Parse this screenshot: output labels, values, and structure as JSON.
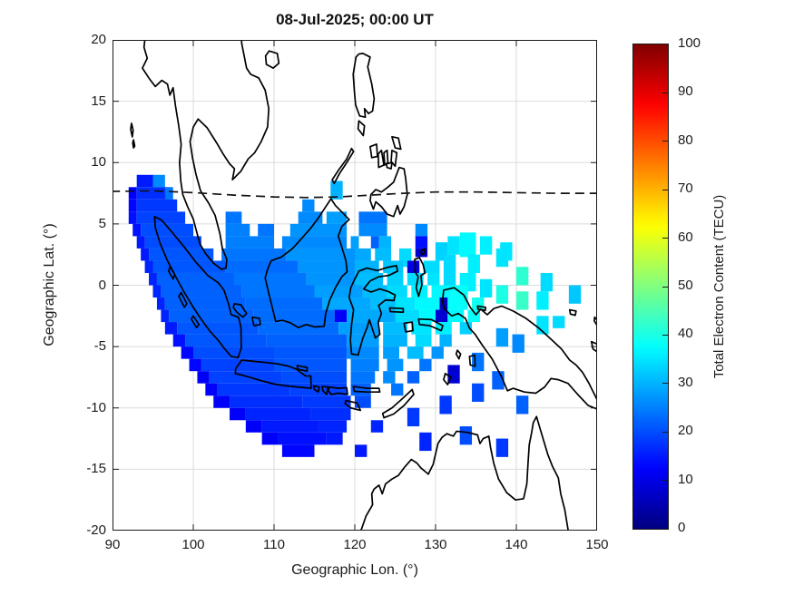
{
  "title": "08-Jul-2025; 00:00 UT",
  "axes": {
    "xlabel": "Geographic Lon. (°)",
    "ylabel": "Geographic Lat. (°)",
    "x_ticks": [
      90,
      100,
      110,
      120,
      130,
      140,
      150
    ],
    "y_ticks": [
      20,
      15,
      10,
      5,
      0,
      -5,
      -10,
      -15,
      -20
    ],
    "x_range": [
      90,
      150
    ],
    "y_range": [
      -20,
      20
    ],
    "grid": true
  },
  "colorbar": {
    "label": "Total Electron Content (TECU)",
    "ticks": [
      0,
      10,
      20,
      30,
      40,
      50,
      60,
      70,
      80,
      90,
      100
    ],
    "range": [
      0,
      100
    ],
    "colormap": "jet"
  },
  "chart_data": {
    "type": "heatmap",
    "title": "08-Jul-2025; 00:00 UT",
    "xlabel": "Geographic Lon. (°)",
    "ylabel": "Geographic Lat. (°)",
    "value_label": "Total Electron Content (TECU)",
    "xlim": [
      90,
      150
    ],
    "ylim": [
      -20,
      20
    ],
    "clim": [
      0,
      100
    ],
    "legend_position": "right-colorbar",
    "grid": true,
    "cell_format": [
      "lon_west_deg",
      "lat_north_deg",
      "lon_span_deg",
      "lat_span_deg",
      "tec_tecu"
    ],
    "cells": [
      [
        93,
        9,
        2,
        1,
        15
      ],
      [
        95,
        9,
        1.5,
        1,
        26
      ],
      [
        92,
        8,
        1,
        1,
        12
      ],
      [
        93,
        8,
        4,
        1,
        17
      ],
      [
        96.5,
        8,
        1,
        1,
        24
      ],
      [
        117,
        8.5,
        1.5,
        1.5,
        30
      ],
      [
        92,
        7,
        1,
        1,
        13
      ],
      [
        93,
        7,
        5,
        1,
        18
      ],
      [
        113.5,
        7,
        1.5,
        1,
        26
      ],
      [
        92,
        6,
        1,
        1,
        14
      ],
      [
        93,
        6,
        6,
        1,
        19
      ],
      [
        104,
        6,
        2,
        1,
        24
      ],
      [
        113,
        6,
        3,
        1,
        26
      ],
      [
        116.5,
        6,
        2.5,
        1,
        28
      ],
      [
        120.5,
        6,
        3.5,
        1,
        24
      ],
      [
        92.5,
        5,
        1,
        1,
        14
      ],
      [
        93.5,
        5,
        6.5,
        1,
        20
      ],
      [
        104,
        5,
        3,
        1,
        25
      ],
      [
        108,
        5,
        2,
        1,
        24
      ],
      [
        112,
        5,
        7,
        1,
        27
      ],
      [
        120.5,
        5,
        3.5,
        1,
        26
      ],
      [
        127.5,
        5,
        1.5,
        1,
        26
      ],
      [
        131.5,
        4,
        1.5,
        1.5,
        35
      ],
      [
        133,
        4.3,
        2,
        2,
        37
      ],
      [
        135.5,
        4,
        1.5,
        1.5,
        36
      ],
      [
        138,
        3.5,
        1.5,
        1.5,
        35
      ],
      [
        93,
        4,
        1,
        1,
        15
      ],
      [
        94,
        4,
        7,
        1,
        20
      ],
      [
        104,
        4,
        6,
        1,
        25
      ],
      [
        111,
        4,
        8,
        1,
        26
      ],
      [
        119.5,
        4,
        1,
        1,
        28
      ],
      [
        122,
        4,
        1,
        1,
        22
      ],
      [
        123,
        4,
        1.5,
        1,
        30
      ],
      [
        127.5,
        4,
        1.5,
        1,
        14
      ],
      [
        130,
        3.5,
        1.5,
        1.5,
        33
      ],
      [
        93.5,
        3,
        1,
        1,
        15
      ],
      [
        94.5,
        3,
        8,
        1,
        21
      ],
      [
        103.5,
        3,
        8,
        1,
        24
      ],
      [
        111.5,
        3,
        8.5,
        1,
        27
      ],
      [
        120,
        3,
        2,
        1,
        29
      ],
      [
        122.5,
        3,
        2,
        1,
        31
      ],
      [
        125.5,
        3,
        1.5,
        1.5,
        34
      ],
      [
        127.5,
        3,
        1.5,
        0.7,
        8
      ],
      [
        131,
        2.5,
        1.5,
        1.5,
        34
      ],
      [
        134,
        2.5,
        1.5,
        1.5,
        36
      ],
      [
        137.5,
        3,
        1.5,
        1.5,
        35
      ],
      [
        94,
        2,
        1,
        1,
        16
      ],
      [
        95,
        2,
        9,
        1,
        21
      ],
      [
        104,
        2,
        9,
        1,
        23
      ],
      [
        113,
        2,
        7,
        1,
        27
      ],
      [
        120,
        2,
        3,
        1,
        30
      ],
      [
        123.5,
        2,
        2.5,
        1,
        32
      ],
      [
        126.5,
        2,
        1.5,
        1,
        10
      ],
      [
        128.5,
        2,
        2,
        1,
        34
      ],
      [
        140,
        1.5,
        1.5,
        1.5,
        42
      ],
      [
        94.5,
        1,
        1,
        1,
        16
      ],
      [
        95.5,
        1,
        9.5,
        1,
        22
      ],
      [
        105,
        1,
        9,
        1,
        24
      ],
      [
        114,
        1,
        6,
        1,
        27
      ],
      [
        120,
        1,
        3.5,
        1,
        31
      ],
      [
        124,
        1,
        2,
        1,
        33
      ],
      [
        126.5,
        1,
        2,
        1,
        34
      ],
      [
        129,
        1,
        1.5,
        1,
        35
      ],
      [
        131,
        1,
        1.5,
        1.5,
        34
      ],
      [
        133,
        1,
        2,
        1.5,
        36
      ],
      [
        135.5,
        0.5,
        1.5,
        1.5,
        35
      ],
      [
        143,
        1,
        1.5,
        1.5,
        34
      ],
      [
        95,
        0,
        1,
        1,
        16
      ],
      [
        96,
        0,
        10,
        1,
        22
      ],
      [
        106,
        0,
        9,
        1,
        24
      ],
      [
        115,
        0,
        6,
        1,
        28
      ],
      [
        121,
        0,
        3,
        1,
        31
      ],
      [
        124,
        0,
        2.5,
        1,
        34
      ],
      [
        127,
        0,
        2,
        1,
        36
      ],
      [
        129.5,
        0,
        2.5,
        1,
        37
      ],
      [
        132,
        0,
        2,
        1,
        38
      ],
      [
        137.5,
        0,
        1.5,
        1.5,
        40
      ],
      [
        140,
        -0.5,
        1.5,
        1.5,
        43
      ],
      [
        142.5,
        -0.5,
        1.5,
        1.5,
        36
      ],
      [
        146.5,
        0,
        1.5,
        1.5,
        32
      ],
      [
        95.5,
        -1,
        1,
        1,
        16
      ],
      [
        96.5,
        -1,
        10,
        1,
        22
      ],
      [
        106.5,
        -1,
        9.5,
        1,
        23
      ],
      [
        116,
        -1,
        6,
        1,
        29
      ],
      [
        122,
        -1,
        3,
        1,
        31
      ],
      [
        125,
        -1,
        2.5,
        1,
        35
      ],
      [
        127.5,
        -1,
        3,
        1,
        37
      ],
      [
        130.5,
        -1,
        1,
        1,
        6
      ],
      [
        131.5,
        -1,
        2.5,
        1,
        38
      ],
      [
        134.5,
        -1,
        1.5,
        1,
        39
      ],
      [
        96,
        -2,
        1,
        1,
        16
      ],
      [
        97,
        -2,
        10.5,
        1,
        22
      ],
      [
        107.5,
        -2,
        10,
        1,
        23
      ],
      [
        117.5,
        -2,
        1.5,
        1,
        12
      ],
      [
        119,
        -2,
        6,
        1,
        29
      ],
      [
        125,
        -2,
        3,
        1,
        34
      ],
      [
        128,
        -2,
        2,
        1,
        37
      ],
      [
        130,
        -2,
        1.5,
        1,
        8
      ],
      [
        131.5,
        -2,
        2,
        1,
        37
      ],
      [
        134,
        -2,
        1.5,
        1,
        38
      ],
      [
        142.5,
        -2.5,
        1.5,
        1.5,
        35
      ],
      [
        144.5,
        -2.5,
        1.5,
        1,
        34
      ],
      [
        96.5,
        -3,
        1.5,
        1,
        15
      ],
      [
        98,
        -3,
        10,
        1,
        21
      ],
      [
        108,
        -3,
        10,
        1,
        23
      ],
      [
        118,
        -3,
        5,
        1,
        28
      ],
      [
        123.5,
        -3,
        3,
        1,
        31
      ],
      [
        127,
        -3,
        2.5,
        1,
        35
      ],
      [
        130,
        -3,
        2,
        1,
        36
      ],
      [
        133,
        -3,
        1.5,
        1,
        33
      ],
      [
        137.5,
        -3.5,
        1.5,
        1.5,
        28
      ],
      [
        97.5,
        -4,
        1.5,
        1,
        14
      ],
      [
        99,
        -4,
        10,
        1,
        21
      ],
      [
        109,
        -4,
        10,
        1,
        22
      ],
      [
        119,
        -4,
        4,
        1,
        28
      ],
      [
        123.5,
        -4,
        3,
        1,
        30
      ],
      [
        127.5,
        -4,
        2,
        1,
        34
      ],
      [
        130.5,
        -4,
        1.5,
        1,
        30
      ],
      [
        139.5,
        -4,
        1.5,
        1.5,
        26
      ],
      [
        98.5,
        -5,
        1.5,
        1,
        13
      ],
      [
        100,
        -5,
        10,
        1,
        20
      ],
      [
        110,
        -5,
        9,
        1,
        21
      ],
      [
        119,
        -5,
        4,
        1,
        26
      ],
      [
        123.5,
        -5,
        2,
        1,
        28
      ],
      [
        126.5,
        -5,
        2,
        1,
        31
      ],
      [
        129.5,
        -5,
        1.5,
        1,
        27
      ],
      [
        134.5,
        -5.5,
        1.5,
        1.5,
        24
      ],
      [
        99.5,
        -6,
        1.5,
        1,
        13
      ],
      [
        101,
        -6,
        9,
        1,
        19
      ],
      [
        110,
        -6,
        9,
        1,
        21
      ],
      [
        119.5,
        -6,
        3.5,
        1,
        25
      ],
      [
        124,
        -6,
        2,
        1,
        27
      ],
      [
        128,
        -6,
        1.5,
        1,
        24
      ],
      [
        131.5,
        -6.5,
        1.5,
        1.5,
        8
      ],
      [
        100.5,
        -7,
        1.5,
        1,
        12
      ],
      [
        102,
        -7,
        9,
        1,
        19
      ],
      [
        111,
        -7,
        8,
        1,
        20
      ],
      [
        119.5,
        -7,
        3,
        1,
        24
      ],
      [
        123.5,
        -7,
        1.5,
        1,
        26
      ],
      [
        126.5,
        -7,
        1.5,
        1,
        22
      ],
      [
        137,
        -7,
        1.5,
        1.5,
        22
      ],
      [
        101.5,
        -8,
        1.5,
        1,
        12
      ],
      [
        103,
        -8,
        9,
        1,
        18
      ],
      [
        112,
        -8,
        7,
        1,
        19
      ],
      [
        119.5,
        -8,
        2.5,
        1,
        22
      ],
      [
        124.5,
        -8,
        1.5,
        1,
        24
      ],
      [
        134.5,
        -8,
        1.5,
        1.5,
        20
      ],
      [
        102.5,
        -9,
        2,
        1,
        12
      ],
      [
        104.5,
        -9,
        9,
        1,
        17
      ],
      [
        113.5,
        -9,
        6,
        1,
        18
      ],
      [
        120,
        -9,
        2,
        1,
        20
      ],
      [
        130.5,
        -9,
        1.5,
        1.5,
        18
      ],
      [
        140,
        -9,
        1.5,
        1.5,
        22
      ],
      [
        104.5,
        -10,
        2,
        1,
        12
      ],
      [
        106.5,
        -10,
        8,
        1,
        16
      ],
      [
        114.5,
        -10,
        5,
        1,
        17
      ],
      [
        126.5,
        -10,
        1.5,
        1.5,
        18
      ],
      [
        106.5,
        -11,
        2,
        1,
        12
      ],
      [
        108.5,
        -11,
        7,
        1,
        15
      ],
      [
        115.5,
        -11,
        3.5,
        1,
        16
      ],
      [
        122,
        -11,
        1.5,
        1,
        16
      ],
      [
        133,
        -11.5,
        1.5,
        1.5,
        20
      ],
      [
        108.5,
        -12,
        2,
        1,
        12
      ],
      [
        110.5,
        -12,
        6,
        1,
        14
      ],
      [
        116.5,
        -12,
        2,
        1,
        15
      ],
      [
        128,
        -12,
        1.5,
        1.5,
        16
      ],
      [
        137.5,
        -12.5,
        1.5,
        1.5,
        18
      ],
      [
        111,
        -13,
        4,
        1,
        13
      ],
      [
        120,
        -13,
        1.5,
        1,
        15
      ]
    ],
    "dashed_line": {
      "name": "magnetic-equator",
      "points": [
        [
          89.8,
          7.65
        ],
        [
          95,
          7.7
        ],
        [
          100,
          7.55
        ],
        [
          105,
          7.35
        ],
        [
          110,
          7.2
        ],
        [
          114,
          7.15
        ],
        [
          118,
          7.2
        ],
        [
          122,
          7.35
        ],
        [
          126,
          7.5
        ],
        [
          130,
          7.6
        ],
        [
          135,
          7.6
        ],
        [
          140,
          7.55
        ],
        [
          145,
          7.5
        ],
        [
          150.2,
          7.5
        ]
      ]
    }
  }
}
